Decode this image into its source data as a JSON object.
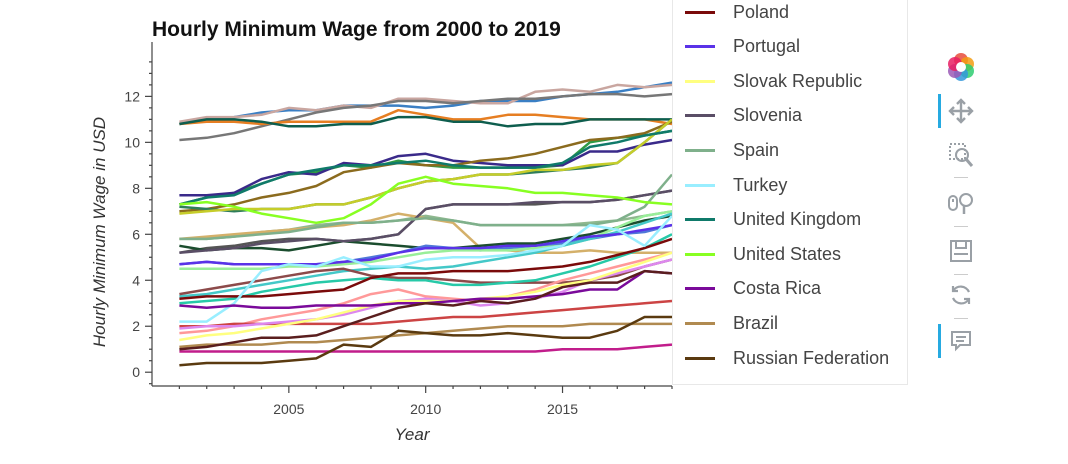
{
  "chart_data": {
    "type": "line",
    "title": "Hourly Minimum Wage from 2000 to 2019",
    "xlabel": "Year",
    "ylabel": "Hourly Minimum Wage in USD",
    "xlim": [
      2000,
      2019
    ],
    "ylim": [
      -0.6,
      13.8
    ],
    "x_ticks": [
      2005,
      2010,
      2015
    ],
    "y_ticks": [
      0,
      2,
      4,
      6,
      8,
      10,
      12
    ],
    "grid": false,
    "legend_position": "right",
    "x": [
      2001,
      2002,
      2003,
      2004,
      2005,
      2006,
      2007,
      2008,
      2009,
      2010,
      2011,
      2012,
      2013,
      2014,
      2015,
      2016,
      2017,
      2018,
      2019
    ],
    "series": [
      {
        "name": "",
        "color": "#3a7fc4",
        "values": [
          10.8,
          11.0,
          11.1,
          11.3,
          11.4,
          11.4,
          11.6,
          11.6,
          11.6,
          11.5,
          11.6,
          11.8,
          11.8,
          11.8,
          12.0,
          12.1,
          12.2,
          12.4,
          12.6
        ]
      },
      {
        "name": "",
        "color": "#c9a6a0",
        "values": [
          10.9,
          11.1,
          11.1,
          11.2,
          11.5,
          11.4,
          11.6,
          11.5,
          11.9,
          11.9,
          11.8,
          11.7,
          11.7,
          12.2,
          12.3,
          12.2,
          12.5,
          12.4,
          12.5
        ]
      },
      {
        "name": "",
        "color": "#777777",
        "values": [
          10.1,
          10.2,
          10.4,
          10.7,
          11.0,
          11.3,
          11.5,
          11.6,
          11.8,
          11.8,
          11.7,
          11.8,
          11.9,
          11.9,
          12.0,
          12.1,
          12.1,
          12.0,
          12.1
        ]
      },
      {
        "name": "",
        "color": "#e67e22",
        "values": [
          10.8,
          10.9,
          10.9,
          10.8,
          10.9,
          10.9,
          10.9,
          10.9,
          11.4,
          11.2,
          11.0,
          11.0,
          11.2,
          11.2,
          11.1,
          11.0,
          11.0,
          11.0,
          10.8
        ]
      },
      {
        "name": "",
        "color": "#0e5e4e",
        "values": [
          10.8,
          11.0,
          11.0,
          10.9,
          10.7,
          10.7,
          10.8,
          10.8,
          11.1,
          11.1,
          10.9,
          10.9,
          10.7,
          10.8,
          10.8,
          11.0,
          11.0,
          11.0,
          11.0
        ]
      },
      {
        "name": "",
        "color": "#2e9a44",
        "values": [
          7.3,
          7.6,
          7.8,
          8.2,
          8.6,
          8.7,
          9.0,
          8.9,
          9.2,
          9.0,
          8.9,
          8.9,
          8.9,
          8.9,
          9.0,
          10.0,
          10.2,
          10.3,
          10.5
        ]
      },
      {
        "name": "",
        "color": "#3a2a8a",
        "values": [
          7.7,
          7.7,
          7.8,
          8.4,
          8.7,
          8.6,
          9.1,
          9.0,
          9.4,
          9.5,
          9.2,
          9.1,
          9.0,
          9.0,
          9.0,
          9.6,
          9.6,
          9.9,
          10.1
        ]
      },
      {
        "name": "",
        "color": "#8b6b1e",
        "values": [
          7.0,
          7.1,
          7.3,
          7.6,
          7.8,
          8.1,
          8.7,
          8.9,
          9.1,
          9.0,
          9.0,
          9.2,
          9.3,
          9.5,
          9.8,
          10.1,
          10.2,
          10.4,
          10.9
        ]
      },
      {
        "name": "",
        "color": "#2f7d5a",
        "values": [
          7.2,
          7.1,
          7.0,
          7.1,
          7.1,
          7.3,
          7.3,
          7.6,
          8.0,
          8.3,
          8.4,
          8.6,
          8.6,
          8.7,
          8.8,
          8.9,
          9.1,
          10.0,
          11.0
        ]
      },
      {
        "name": "",
        "color": "#c6cd2a",
        "values": [
          6.9,
          7.0,
          7.1,
          7.1,
          7.1,
          7.3,
          7.3,
          7.6,
          8.0,
          8.3,
          8.4,
          8.6,
          8.6,
          8.8,
          8.8,
          9.0,
          9.1,
          10.0,
          11.0
        ]
      },
      {
        "name": "",
        "color": "#8fb88f",
        "values": [
          5.8,
          5.8,
          5.9,
          6.1,
          6.2,
          6.4,
          6.5,
          6.5,
          6.6,
          6.8,
          6.6,
          6.4,
          6.4,
          6.4,
          6.4,
          6.5,
          6.6,
          6.8,
          7.0
        ]
      },
      {
        "name": "",
        "color": "#555555",
        "values": [
          5.2,
          5.4,
          5.5,
          5.7,
          5.8,
          5.8,
          5.7,
          5.8,
          6.0,
          7.1,
          7.3,
          7.3,
          7.3,
          7.3,
          7.4,
          7.4,
          7.5,
          7.7,
          7.9
        ]
      },
      {
        "name": "",
        "color": "#d4b06a",
        "values": [
          5.8,
          5.9,
          6.0,
          6.1,
          6.2,
          6.3,
          6.4,
          6.6,
          6.9,
          6.7,
          6.5,
          5.4,
          5.3,
          5.2,
          5.2,
          5.3,
          5.2,
          5.2,
          5.2
        ]
      },
      {
        "name": "",
        "color": "#1b4d2e",
        "values": [
          5.5,
          5.3,
          5.4,
          5.4,
          5.3,
          5.5,
          5.7,
          5.6,
          5.5,
          5.4,
          5.4,
          5.5,
          5.6,
          5.6,
          5.8,
          6.0,
          6.3,
          6.6,
          6.8
        ]
      },
      {
        "name": "",
        "color": "#4f78d8",
        "values": [
          4.7,
          4.8,
          4.7,
          4.7,
          4.7,
          4.7,
          4.8,
          5.0,
          5.2,
          5.5,
          5.4,
          5.3,
          5.4,
          5.5,
          5.6,
          5.8,
          6.0,
          6.1,
          6.4
        ]
      },
      {
        "name": "",
        "color": "#99ee99",
        "values": [
          4.5,
          4.5,
          4.5,
          4.5,
          4.6,
          4.6,
          4.7,
          4.8,
          5.0,
          5.2,
          5.3,
          5.3,
          5.3,
          5.4,
          5.5,
          5.8,
          6.3,
          6.8,
          7.0
        ]
      },
      {
        "name": "",
        "color": "#44c8c8",
        "values": [
          3.3,
          3.4,
          3.6,
          3.8,
          4.0,
          4.2,
          4.4,
          4.5,
          4.6,
          4.5,
          4.6,
          4.8,
          5.0,
          5.2,
          5.5,
          5.8,
          6.1,
          6.5,
          6.9
        ]
      },
      {
        "name": "",
        "color": "#8c4a4a",
        "values": [
          3.4,
          3.6,
          3.8,
          4.0,
          4.2,
          4.4,
          4.5,
          4.2,
          4.1,
          4.1,
          4.0,
          3.9,
          3.9,
          3.9,
          3.9,
          4.0,
          4.2,
          4.6,
          4.9
        ]
      },
      {
        "name": "",
        "color": "#27c9a8",
        "values": [
          3.0,
          3.1,
          3.2,
          3.5,
          3.7,
          3.9,
          4.0,
          4.1,
          4.0,
          4.0,
          3.8,
          3.8,
          3.9,
          4.0,
          4.3,
          4.6,
          5.0,
          5.4,
          6.0
        ]
      },
      {
        "name": "",
        "color": "#ff9999",
        "values": [
          1.7,
          1.8,
          2.0,
          2.3,
          2.5,
          2.7,
          3.0,
          3.4,
          3.6,
          3.3,
          3.2,
          3.1,
          3.3,
          3.6,
          4.0,
          4.3,
          4.6,
          4.9,
          5.2
        ]
      },
      {
        "name": "",
        "color": "#cc4444",
        "values": [
          2.0,
          2.0,
          2.1,
          2.1,
          2.1,
          2.1,
          2.1,
          2.1,
          2.2,
          2.3,
          2.4,
          2.4,
          2.5,
          2.6,
          2.7,
          2.8,
          2.9,
          3.0,
          3.1
        ]
      },
      {
        "name": "",
        "color": "#dd88ee",
        "values": [
          1.9,
          2.0,
          2.0,
          2.1,
          2.2,
          2.3,
          2.5,
          2.8,
          3.1,
          3.2,
          3.1,
          2.9,
          3.0,
          3.2,
          3.5,
          4.0,
          4.3,
          4.6,
          4.9
        ]
      },
      {
        "name": "",
        "color": "#c11d8b",
        "values": [
          0.9,
          0.9,
          0.9,
          0.9,
          0.9,
          0.9,
          0.9,
          0.9,
          0.9,
          0.9,
          0.9,
          0.9,
          0.9,
          0.9,
          1.0,
          1.0,
          1.0,
          1.1,
          1.2
        ]
      },
      {
        "name": "Poland",
        "color": "#7a0a0a",
        "values": [
          3.2,
          3.3,
          3.3,
          3.3,
          3.4,
          3.5,
          3.6,
          4.1,
          4.3,
          4.3,
          4.4,
          4.4,
          4.4,
          4.5,
          4.6,
          4.8,
          5.1,
          5.4,
          5.8
        ]
      },
      {
        "name": "Portugal",
        "color": "#5a32e8",
        "values": [
          4.7,
          4.8,
          4.7,
          4.7,
          4.7,
          4.7,
          4.8,
          4.9,
          5.2,
          5.4,
          5.4,
          5.4,
          5.5,
          5.5,
          5.7,
          5.9,
          6.0,
          6.2,
          6.4
        ]
      },
      {
        "name": "Slovak Republic",
        "color": "#ffff80",
        "values": [
          1.4,
          1.6,
          1.7,
          1.9,
          2.1,
          2.3,
          2.6,
          2.9,
          3.1,
          3.1,
          3.1,
          3.2,
          3.3,
          3.5,
          3.8,
          4.0,
          4.4,
          4.8,
          5.2
        ]
      },
      {
        "name": "Slovenia",
        "color": "#5a4e66",
        "values": [
          5.2,
          5.3,
          5.4,
          5.6,
          5.7,
          5.8,
          5.7,
          5.8,
          6.0,
          7.1,
          7.3,
          7.3,
          7.3,
          7.4,
          7.4,
          7.4,
          7.5,
          7.7,
          7.9
        ]
      },
      {
        "name": "Spain",
        "color": "#7fb08b",
        "values": [
          5.8,
          5.8,
          5.9,
          6.0,
          6.1,
          6.3,
          6.5,
          6.5,
          6.6,
          6.7,
          6.6,
          6.4,
          6.4,
          6.4,
          6.4,
          6.4,
          6.6,
          7.2,
          8.6
        ]
      },
      {
        "name": "Turkey",
        "color": "#99eeff",
        "values": [
          2.2,
          2.2,
          3.0,
          4.4,
          4.7,
          4.6,
          5.0,
          4.6,
          4.6,
          4.9,
          5.0,
          5.0,
          5.1,
          5.3,
          5.5,
          6.4,
          6.2,
          5.5,
          6.8
        ]
      },
      {
        "name": "United Kingdom",
        "color": "#0f7a6a",
        "values": [
          7.3,
          7.6,
          7.7,
          8.2,
          8.6,
          8.8,
          9.0,
          9.0,
          9.1,
          9.2,
          9.0,
          8.9,
          8.9,
          8.9,
          9.1,
          9.8,
          10.0,
          10.3,
          10.5
        ]
      },
      {
        "name": "United States",
        "color": "#88ff22",
        "values": [
          7.3,
          7.4,
          7.2,
          6.9,
          6.7,
          6.5,
          6.7,
          7.3,
          8.2,
          8.5,
          8.2,
          8.1,
          8.0,
          7.8,
          7.8,
          7.7,
          7.6,
          7.4,
          7.3
        ]
      },
      {
        "name": "Costa Rica",
        "color": "#7a0a9a",
        "values": [
          2.9,
          2.8,
          2.9,
          2.8,
          2.8,
          2.9,
          2.9,
          2.9,
          3.0,
          3.0,
          3.1,
          3.2,
          3.2,
          3.3,
          3.4,
          3.6,
          3.6,
          4.4,
          4.3
        ]
      },
      {
        "name": "Brazil",
        "color": "#b08a50",
        "values": [
          1.1,
          1.2,
          1.2,
          1.2,
          1.3,
          1.3,
          1.4,
          1.5,
          1.6,
          1.7,
          1.8,
          1.9,
          2.0,
          2.0,
          2.0,
          2.1,
          2.1,
          2.1,
          2.1
        ]
      },
      {
        "name": "Russian Federation",
        "color": "#5a3a10",
        "values": [
          0.3,
          0.4,
          0.4,
          0.4,
          0.5,
          0.6,
          1.2,
          1.1,
          1.8,
          1.7,
          1.6,
          1.6,
          1.7,
          1.6,
          1.5,
          1.5,
          1.8,
          2.4,
          2.4
        ]
      },
      {
        "name": "",
        "color": "#5a1e1e",
        "values": [
          1.0,
          1.1,
          1.3,
          1.5,
          1.5,
          1.6,
          2.0,
          2.4,
          2.8,
          3.0,
          2.9,
          3.1,
          3.0,
          3.2,
          3.7,
          3.9,
          3.9,
          4.4,
          4.3
        ]
      }
    ],
    "legend": [
      {
        "name": "Poland",
        "color": "#7a0a0a"
      },
      {
        "name": "Portugal",
        "color": "#5a32e8"
      },
      {
        "name": "Slovak Republic",
        "color": "#ffff80"
      },
      {
        "name": "Slovenia",
        "color": "#5a4e66"
      },
      {
        "name": "Spain",
        "color": "#7fb08b"
      },
      {
        "name": "Turkey",
        "color": "#99eeff"
      },
      {
        "name": "United Kingdom",
        "color": "#0f7a6a"
      },
      {
        "name": "United States",
        "color": "#88ff22"
      },
      {
        "name": "Costa Rica",
        "color": "#7a0a9a"
      },
      {
        "name": "Brazil",
        "color": "#b08a50"
      },
      {
        "name": "Russian Federation",
        "color": "#5a3a10"
      }
    ]
  },
  "toolbar": {
    "accent_color": "#26aae1",
    "tools": [
      {
        "icon": "bokeh-logo-icon",
        "active": false
      },
      {
        "icon": "pan-icon",
        "active": true
      },
      {
        "icon": "box-zoom-icon",
        "active": false
      },
      {
        "icon": "wheel-zoom-icon",
        "active": false
      },
      {
        "icon": "save-icon",
        "active": false
      },
      {
        "icon": "reset-icon",
        "active": false
      },
      {
        "icon": "hover-icon",
        "active": true
      }
    ]
  }
}
